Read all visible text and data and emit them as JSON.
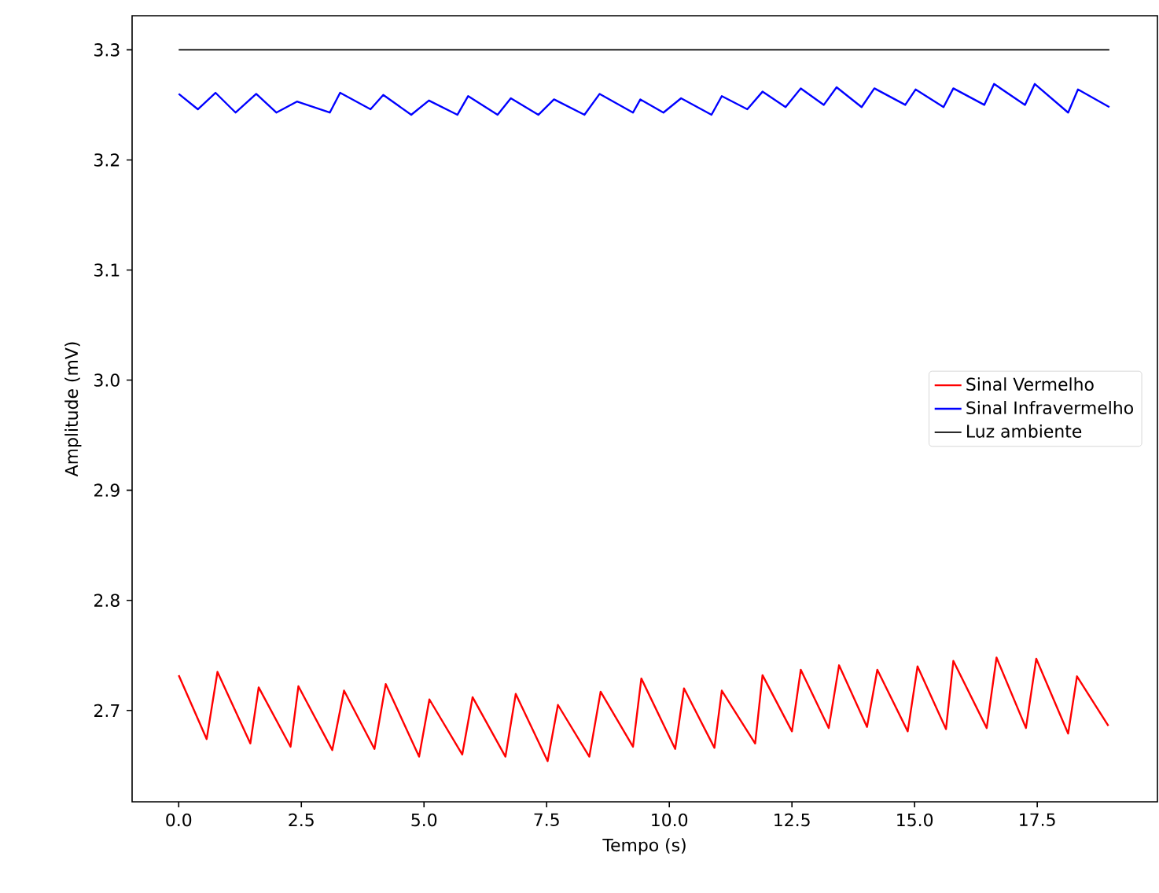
{
  "chart_data": {
    "type": "line",
    "xlabel": "Tempo (s)",
    "ylabel": "Amplitude (mV)",
    "xlim": [
      -0.95,
      19.95
    ],
    "ylim": [
      2.617,
      3.331
    ],
    "xticks": [
      {
        "value": 0,
        "label": "0.0"
      },
      {
        "value": 2.5,
        "label": "2.5"
      },
      {
        "value": 5,
        "label": "5.0"
      },
      {
        "value": 7.5,
        "label": "7.5"
      },
      {
        "value": 10,
        "label": "10.0"
      },
      {
        "value": 12.5,
        "label": "12.5"
      },
      {
        "value": 15,
        "label": "15.0"
      },
      {
        "value": 17.5,
        "label": "17.5"
      }
    ],
    "yticks": [
      {
        "value": 2.7,
        "label": "2.7"
      },
      {
        "value": 2.8,
        "label": "2.8"
      },
      {
        "value": 2.9,
        "label": "2.9"
      },
      {
        "value": 3.0,
        "label": "3.0"
      },
      {
        "value": 3.1,
        "label": "3.1"
      },
      {
        "value": 3.2,
        "label": "3.2"
      },
      {
        "value": 3.3,
        "label": "3.3"
      }
    ],
    "legend": "right",
    "grid": false,
    "marker": "none",
    "line_style": "solid",
    "series": [
      {
        "name": "Sinal Vermelho",
        "color": "#ff0000",
        "x": [
          0,
          0.57,
          0.79,
          1.46,
          1.63,
          2.28,
          2.44,
          3.13,
          3.37,
          3.99,
          4.22,
          4.9,
          5.11,
          5.78,
          5.99,
          6.66,
          6.87,
          7.52,
          7.73,
          8.37,
          8.6,
          9.26,
          9.43,
          10.12,
          10.3,
          10.92,
          11.07,
          11.75,
          11.9,
          12.5,
          12.68,
          13.25,
          13.46,
          14.03,
          14.24,
          14.86,
          15.06,
          15.64,
          15.79,
          16.47,
          16.67,
          17.27,
          17.48,
          18.13,
          18.31,
          18.95
        ],
        "values": [
          2.732,
          2.674,
          2.735,
          2.67,
          2.721,
          2.667,
          2.722,
          2.664,
          2.718,
          2.665,
          2.724,
          2.658,
          2.71,
          2.66,
          2.712,
          2.658,
          2.715,
          2.654,
          2.705,
          2.658,
          2.717,
          2.667,
          2.729,
          2.665,
          2.72,
          2.666,
          2.718,
          2.67,
          2.732,
          2.681,
          2.737,
          2.684,
          2.741,
          2.685,
          2.737,
          2.681,
          2.74,
          2.683,
          2.745,
          2.684,
          2.748,
          2.684,
          2.747,
          2.679,
          2.731,
          2.686
        ]
      },
      {
        "name": "Sinal Infravermelho",
        "color": "#0000ff",
        "x": [
          0,
          0.39,
          0.75,
          1.16,
          1.58,
          1.99,
          2.41,
          3.08,
          3.29,
          3.91,
          4.17,
          4.74,
          5.1,
          5.68,
          5.9,
          6.5,
          6.77,
          7.33,
          7.65,
          8.27,
          8.58,
          9.26,
          9.41,
          9.88,
          10.24,
          10.86,
          11.07,
          11.59,
          11.9,
          12.37,
          12.68,
          13.15,
          13.41,
          13.92,
          14.18,
          14.81,
          15.02,
          15.59,
          15.79,
          16.42,
          16.62,
          17.25,
          17.45,
          18.13,
          18.33,
          18.97
        ],
        "values": [
          3.26,
          3.246,
          3.261,
          3.243,
          3.26,
          3.243,
          3.253,
          3.243,
          3.261,
          3.246,
          3.259,
          3.241,
          3.254,
          3.241,
          3.258,
          3.241,
          3.256,
          3.241,
          3.255,
          3.241,
          3.26,
          3.243,
          3.255,
          3.243,
          3.256,
          3.241,
          3.258,
          3.246,
          3.262,
          3.248,
          3.265,
          3.25,
          3.266,
          3.248,
          3.265,
          3.25,
          3.264,
          3.248,
          3.265,
          3.25,
          3.269,
          3.25,
          3.269,
          3.243,
          3.264,
          3.248
        ]
      },
      {
        "name": "Luz ambiente",
        "color": "#000000",
        "x": [
          0,
          18.97
        ],
        "values": [
          3.3,
          3.3
        ]
      }
    ]
  }
}
